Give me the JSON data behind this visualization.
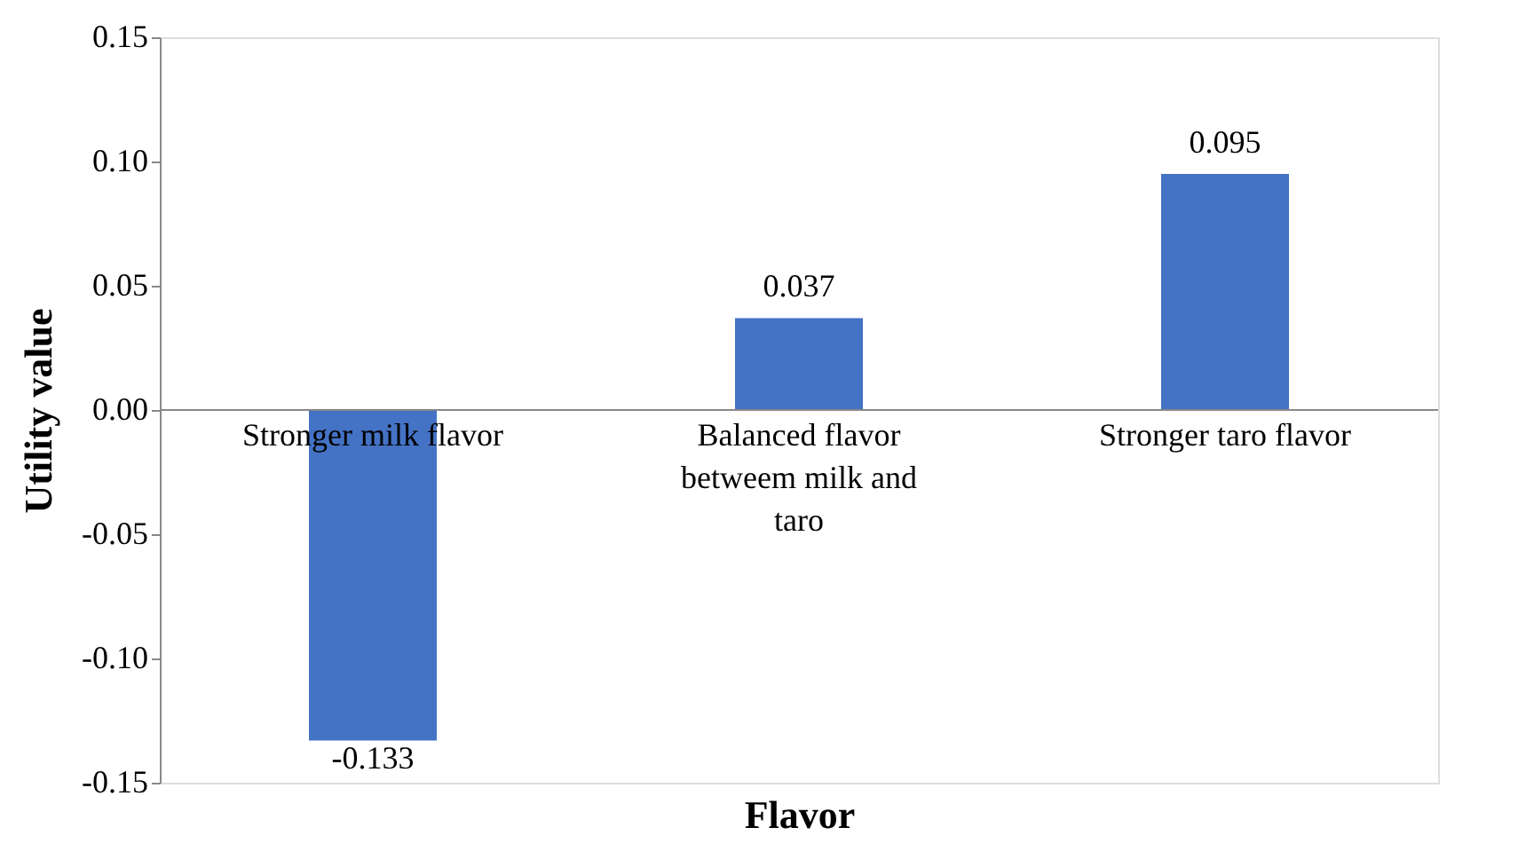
{
  "chart_data": {
    "type": "bar",
    "xlabel": "Flavor",
    "ylabel": "Utility value",
    "categories": [
      "Stronger milk flavor",
      "Balanced flavor betweem milk and taro",
      "Stronger taro flavor"
    ],
    "values": [
      -0.133,
      0.037,
      0.095
    ],
    "color": "#4472c4",
    "data_labels": true,
    "ylim": [
      -0.15,
      0.15
    ],
    "yticks": [
      -0.15,
      {
        "value": -0.1,
        "label": "-0.10"
      },
      -0.05,
      {
        "value": 0,
        "label": "0.00"
      },
      0.05,
      {
        "value": 0.1,
        "label": "0.10"
      },
      0.15
    ],
    "grid": false
  }
}
